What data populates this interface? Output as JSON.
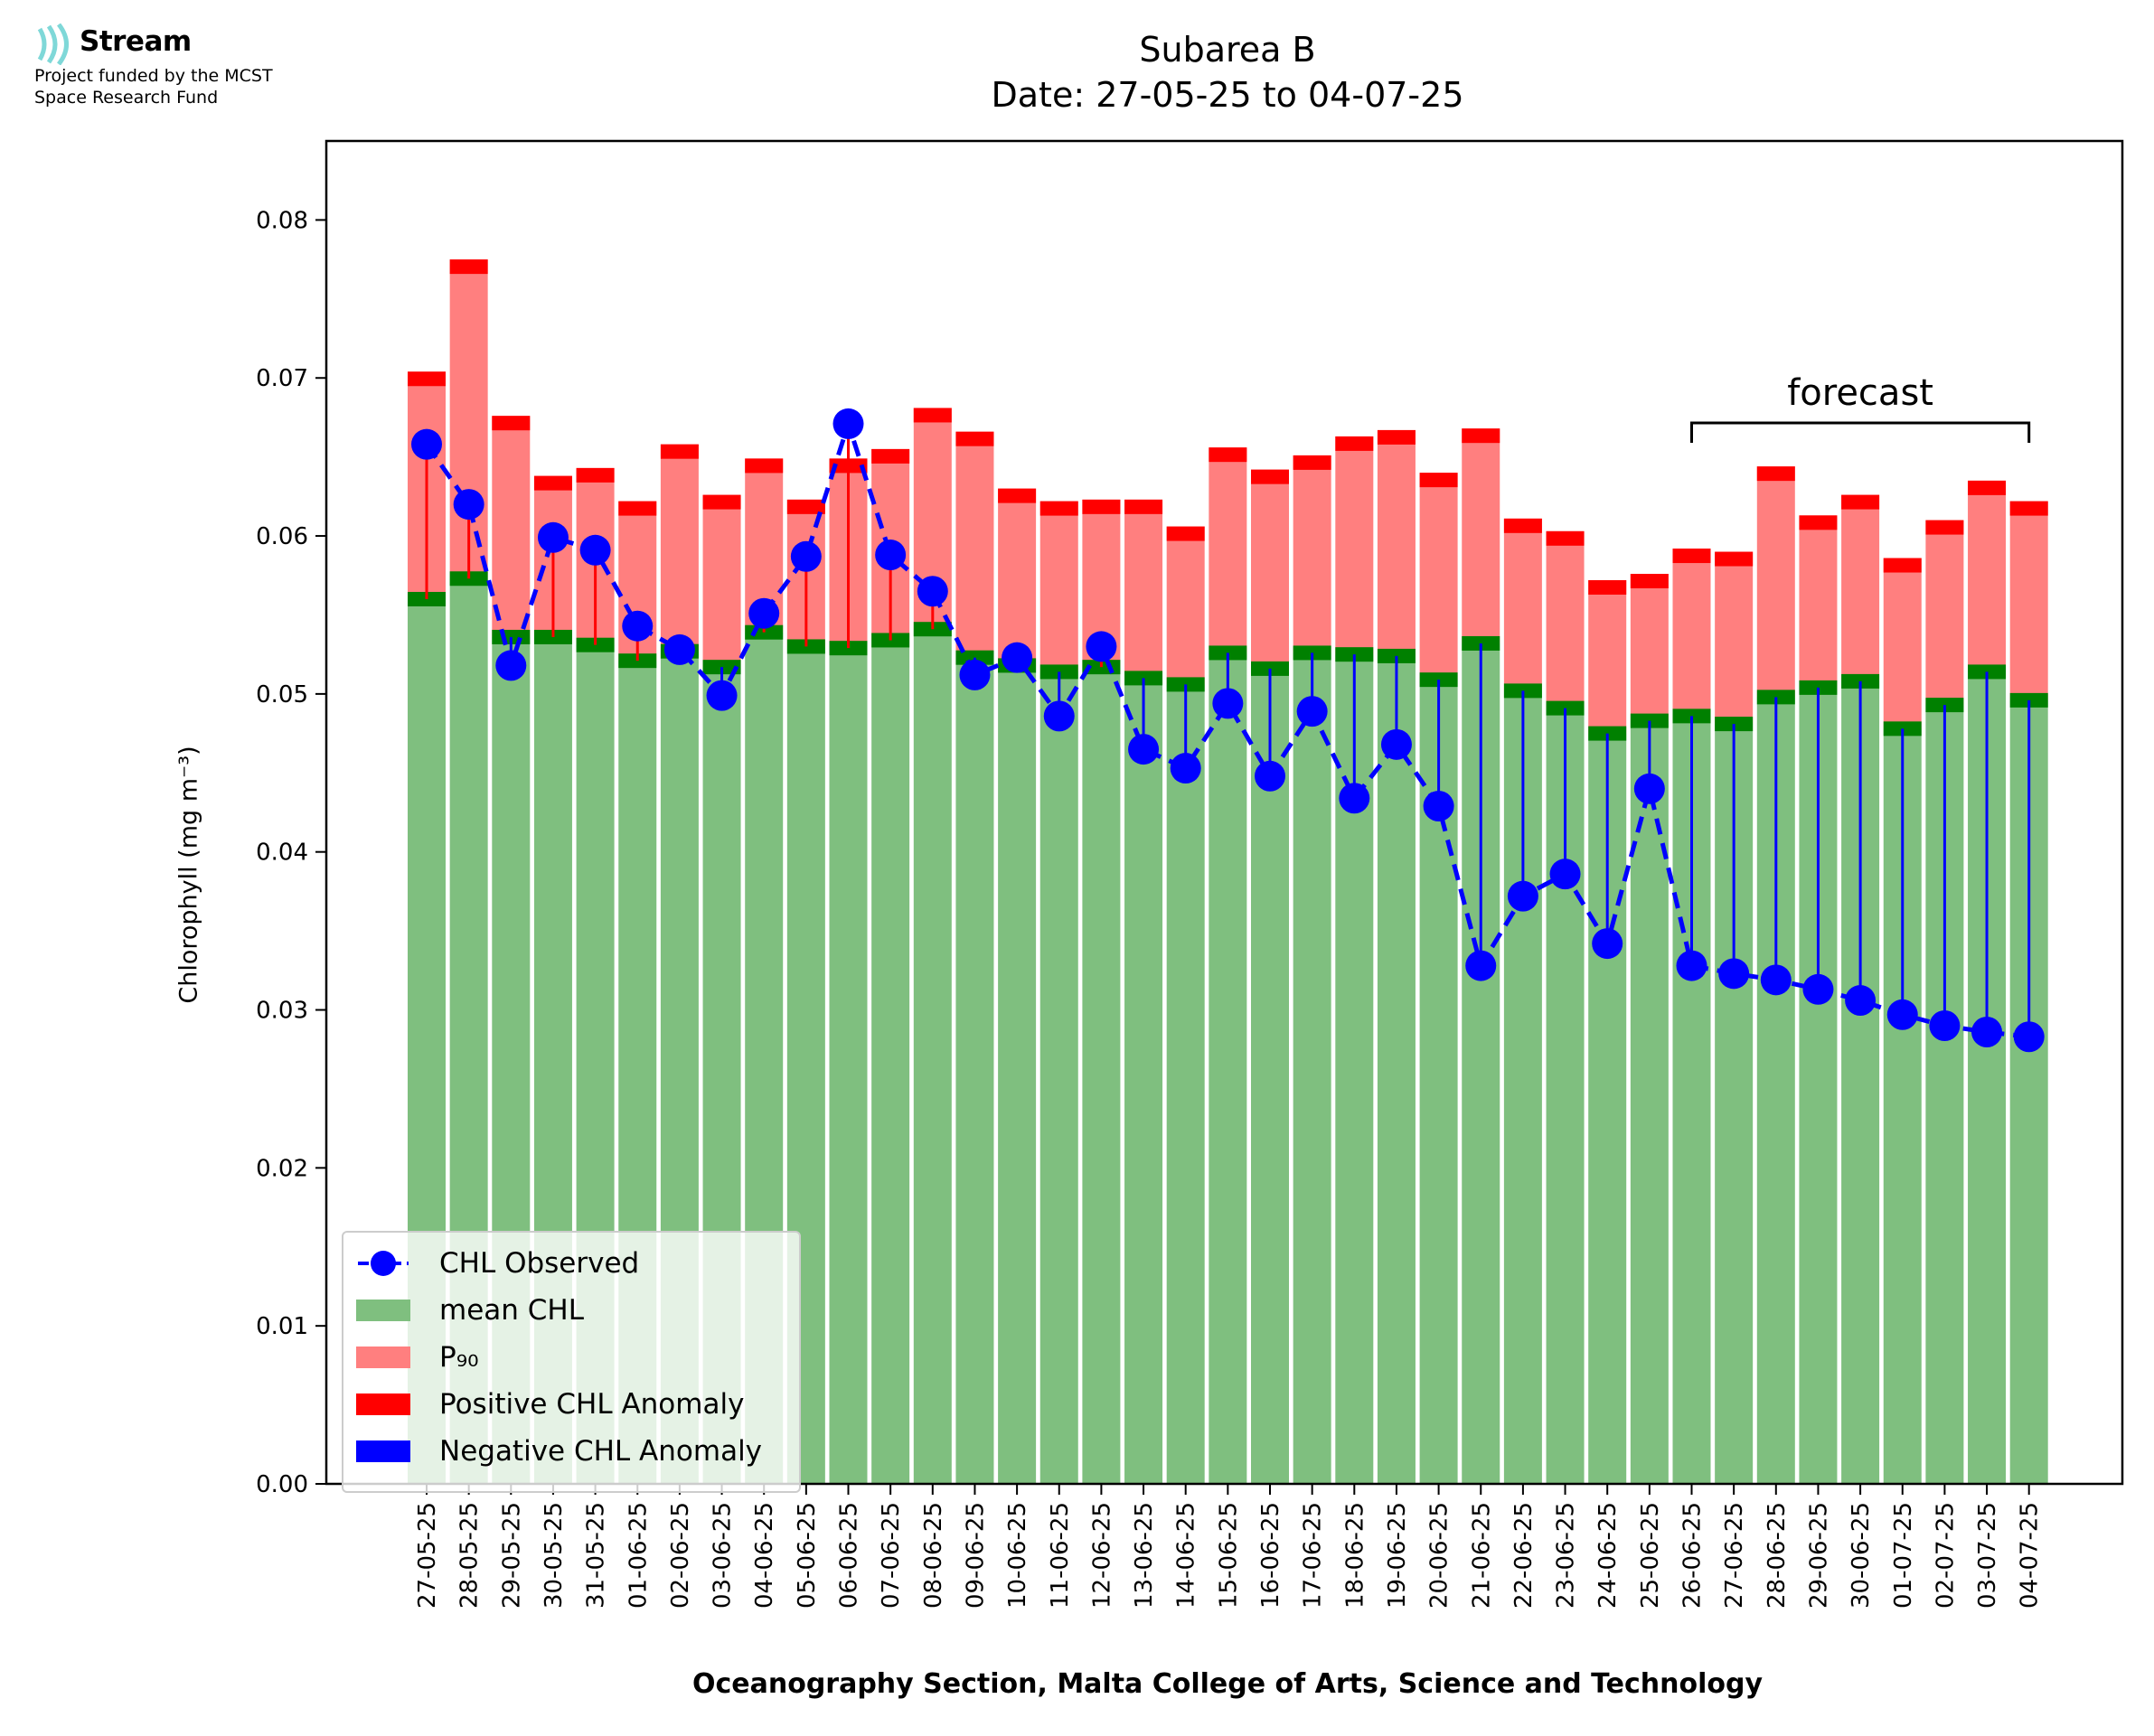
{
  "logo": {
    "name": "Stream",
    "subtitle_line1": "Project funded by the MCST",
    "subtitle_line2": "Space Research Fund",
    "icon": "stream-waves-icon",
    "color": "#7fd8d8"
  },
  "colors": {
    "mean": "#7fbf7f",
    "mean_cap": "#008000",
    "p90": "#ff7f7f",
    "p90_cap": "#ff0000",
    "observed": "#0000ff",
    "negative": "#0000ff",
    "positive": "#ff0000"
  },
  "chart_data": {
    "type": "bar",
    "title": "Subarea B",
    "subtitle": "Date: 27-05-25 to 04-07-25",
    "xlabel": "Oceanography Section, Malta College of Arts, Science and Technology",
    "ylabel": "Chlorophyll (mg m⁻³)",
    "ylim": [
      0,
      0.085
    ],
    "yticks": [
      "0.00",
      "0.01",
      "0.02",
      "0.03",
      "0.04",
      "0.05",
      "0.06",
      "0.07",
      "0.08"
    ],
    "grid": false,
    "legend_position": "bottom-left",
    "annotation": "forecast",
    "forecast_range": [
      "26-06-25",
      "04-07-25"
    ],
    "categories": [
      "27-05-25",
      "28-05-25",
      "29-05-25",
      "30-05-25",
      "31-05-25",
      "01-06-25",
      "02-06-25",
      "03-06-25",
      "04-06-25",
      "05-06-25",
      "06-06-25",
      "07-06-25",
      "08-06-25",
      "09-06-25",
      "10-06-25",
      "11-06-25",
      "12-06-25",
      "13-06-25",
      "14-06-25",
      "15-06-25",
      "16-06-25",
      "17-06-25",
      "18-06-25",
      "19-06-25",
      "20-06-25",
      "21-06-25",
      "22-06-25",
      "23-06-25",
      "24-06-25",
      "25-06-25",
      "26-06-25",
      "27-06-25",
      "28-06-25",
      "29-06-25",
      "30-06-25",
      "01-07-25",
      "02-07-25",
      "03-07-25",
      "04-07-25"
    ],
    "series": [
      {
        "name": "CHL Observed",
        "values": [
          0.0658,
          0.062,
          0.0518,
          0.0599,
          0.0591,
          0.0543,
          0.0528,
          0.0499,
          0.0551,
          0.0587,
          0.0671,
          0.0588,
          0.0565,
          0.0512,
          0.0523,
          0.0486,
          0.053,
          0.0465,
          0.0453,
          0.0494,
          0.0448,
          0.0489,
          0.0434,
          0.0468,
          0.0429,
          0.0328,
          0.0372,
          0.0386,
          0.0342,
          0.044,
          0.0328,
          0.0323,
          0.0319,
          0.0313,
          0.0306,
          0.0297,
          0.029,
          0.0286,
          0.0283
        ]
      },
      {
        "name": "mean CHL",
        "values": [
          0.056,
          0.0573,
          0.0536,
          0.0536,
          0.0531,
          0.0521,
          0.0527,
          0.0517,
          0.0539,
          0.053,
          0.0529,
          0.0534,
          0.0541,
          0.0523,
          0.0518,
          0.0514,
          0.0517,
          0.051,
          0.0506,
          0.0526,
          0.0516,
          0.0526,
          0.0525,
          0.0524,
          0.0509,
          0.0532,
          0.0502,
          0.0491,
          0.0475,
          0.0483,
          0.0486,
          0.0481,
          0.0498,
          0.0504,
          0.0508,
          0.0478,
          0.0493,
          0.0514,
          0.0496
        ]
      },
      {
        "name": "P₉₀",
        "values": [
          0.0704,
          0.0775,
          0.0676,
          0.0638,
          0.0643,
          0.0622,
          0.0658,
          0.0626,
          0.0649,
          0.0623,
          0.0649,
          0.0655,
          0.0681,
          0.0666,
          0.063,
          0.0622,
          0.0623,
          0.0623,
          0.0606,
          0.0656,
          0.0642,
          0.0651,
          0.0663,
          0.0667,
          0.064,
          0.0668,
          0.0611,
          0.0603,
          0.0572,
          0.0576,
          0.0592,
          0.059,
          0.0644,
          0.0613,
          0.0626,
          0.0586,
          0.061,
          0.0635,
          0.0622
        ]
      }
    ],
    "legend": [
      "CHL Observed",
      "mean CHL",
      "P₉₀",
      "Positive CHL Anomaly",
      "Negative CHL Anomaly"
    ]
  }
}
